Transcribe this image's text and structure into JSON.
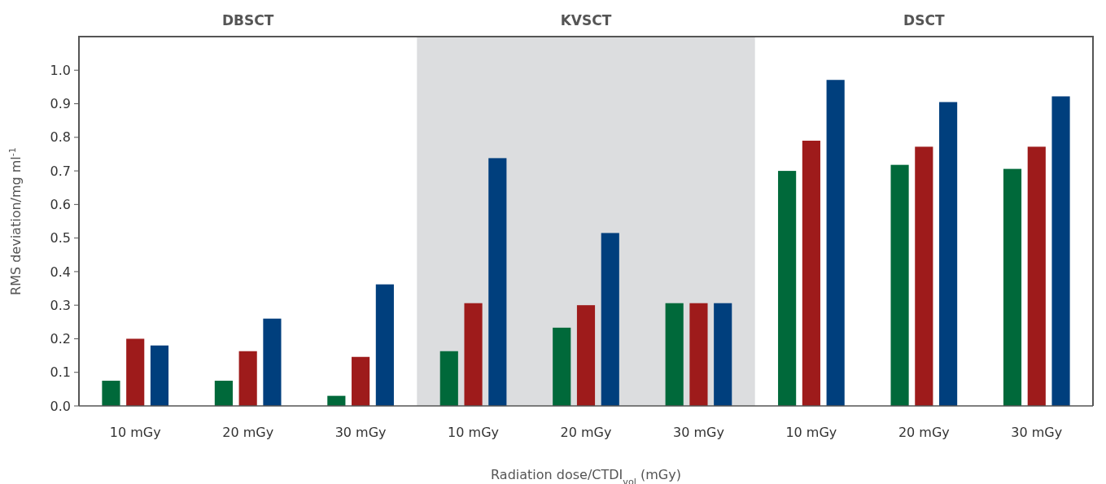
{
  "chart_data": {
    "type": "bar",
    "xlabel": "Radiation dose/CTDI$_{vol}$ (mGy)",
    "ylabel": "RMS deviation/mg ml$^{-1}$",
    "categories": [
      "10 mGy",
      "20 mGy",
      "30 mGy",
      "10 mGy",
      "20 mGy",
      "30 mGy",
      "10 mGy",
      "20 mGy",
      "30 mGy"
    ],
    "series": [
      {
        "color": "#00693a",
        "values": [
          0.075,
          0.075,
          0.03,
          0.163,
          0.233,
          0.306,
          0.7,
          0.718,
          0.706
        ]
      },
      {
        "color": "#9e1b1b",
        "values": [
          0.2,
          0.163,
          0.146,
          0.306,
          0.3,
          0.306,
          0.79,
          0.772,
          0.772
        ]
      },
      {
        "color": "#003f7d",
        "values": [
          0.18,
          0.26,
          0.362,
          0.738,
          0.515,
          0.306,
          0.971,
          0.905,
          0.922
        ]
      }
    ],
    "ylim": [
      0,
      1.1
    ],
    "yticks": [
      {
        "value": 0,
        "label": "0.0"
      },
      0.1,
      0.2,
      0.3,
      0.4,
      0.5,
      0.6,
      0.7,
      0.8,
      0.9,
      {
        "value": 1,
        "label": "1.0"
      }
    ],
    "annotations": [
      "DBSCT",
      "KVSCT",
      "DSCT"
    ],
    "grid": false,
    "legend": false
  }
}
